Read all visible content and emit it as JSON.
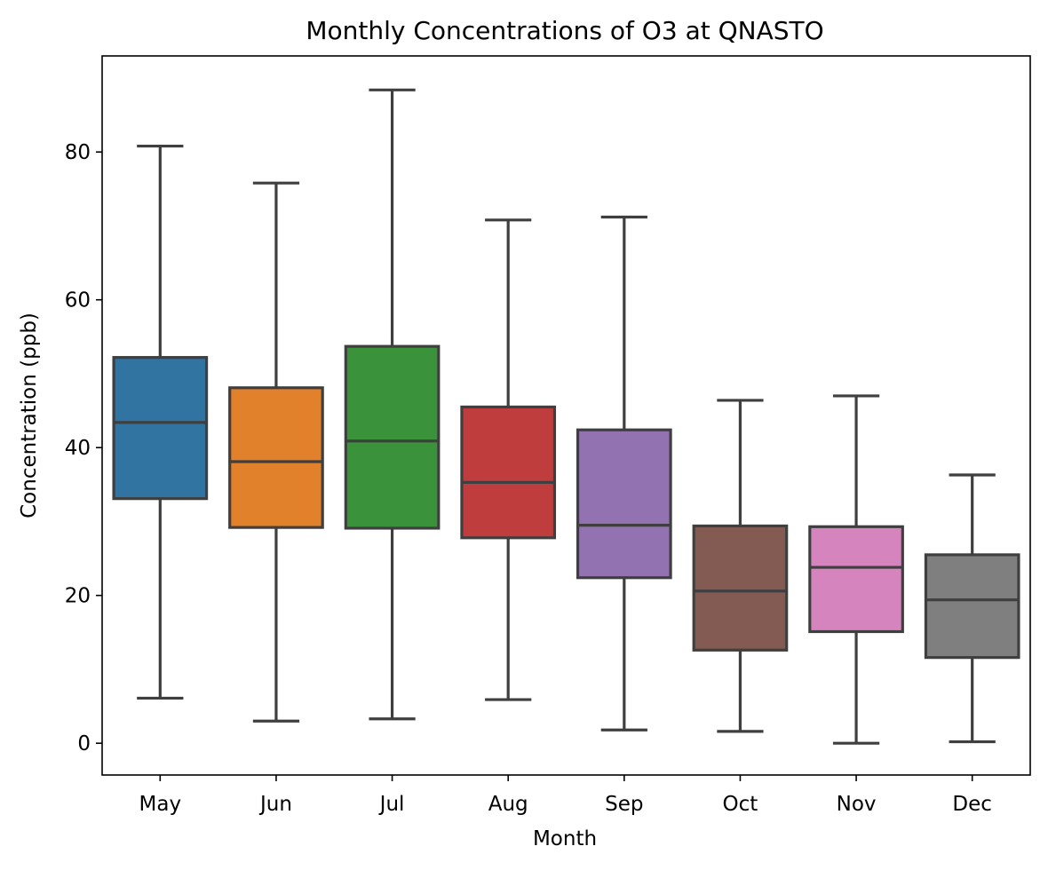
{
  "chart_data": {
    "type": "box",
    "title": "Monthly Concentrations of O3 at QNASTO",
    "xlabel": "Month",
    "ylabel": "Concentration (ppb)",
    "ylim": [
      -4.3,
      93
    ],
    "yticks": [
      0,
      20,
      40,
      60,
      80
    ],
    "grid": false,
    "categories": [
      "May",
      "Jun",
      "Jul",
      "Aug",
      "Sep",
      "Oct",
      "Nov",
      "Dec"
    ],
    "boxes": [
      {
        "label": "May",
        "whisker_low": 6.1,
        "q1": 33.1,
        "median": 43.4,
        "q3": 52.2,
        "whisker_high": 80.8,
        "color": "#3274a1"
      },
      {
        "label": "Jun",
        "whisker_low": 3.0,
        "q1": 29.2,
        "median": 38.1,
        "q3": 48.1,
        "whisker_high": 75.8,
        "color": "#e1812c"
      },
      {
        "label": "Jul",
        "whisker_low": 3.3,
        "q1": 29.1,
        "median": 40.9,
        "q3": 53.7,
        "whisker_high": 88.4,
        "color": "#3a923a"
      },
      {
        "label": "Aug",
        "whisker_low": 5.9,
        "q1": 27.8,
        "median": 35.3,
        "q3": 45.5,
        "whisker_high": 70.8,
        "color": "#c03d3e"
      },
      {
        "label": "Sep",
        "whisker_low": 1.8,
        "q1": 22.4,
        "median": 29.5,
        "q3": 42.4,
        "whisker_high": 71.2,
        "color": "#9372b2"
      },
      {
        "label": "Oct",
        "whisker_low": 1.6,
        "q1": 12.6,
        "median": 20.6,
        "q3": 29.4,
        "whisker_high": 46.4,
        "color": "#845b53"
      },
      {
        "label": "Nov",
        "whisker_low": 0.0,
        "q1": 15.1,
        "median": 23.8,
        "q3": 29.3,
        "whisker_high": 47.0,
        "color": "#d684bd"
      },
      {
        "label": "Dec",
        "whisker_low": 0.2,
        "q1": 11.6,
        "median": 19.4,
        "q3": 25.5,
        "whisker_high": 36.3,
        "color": "#7f7f7f"
      }
    ],
    "line_color": "#3f3f3f"
  }
}
